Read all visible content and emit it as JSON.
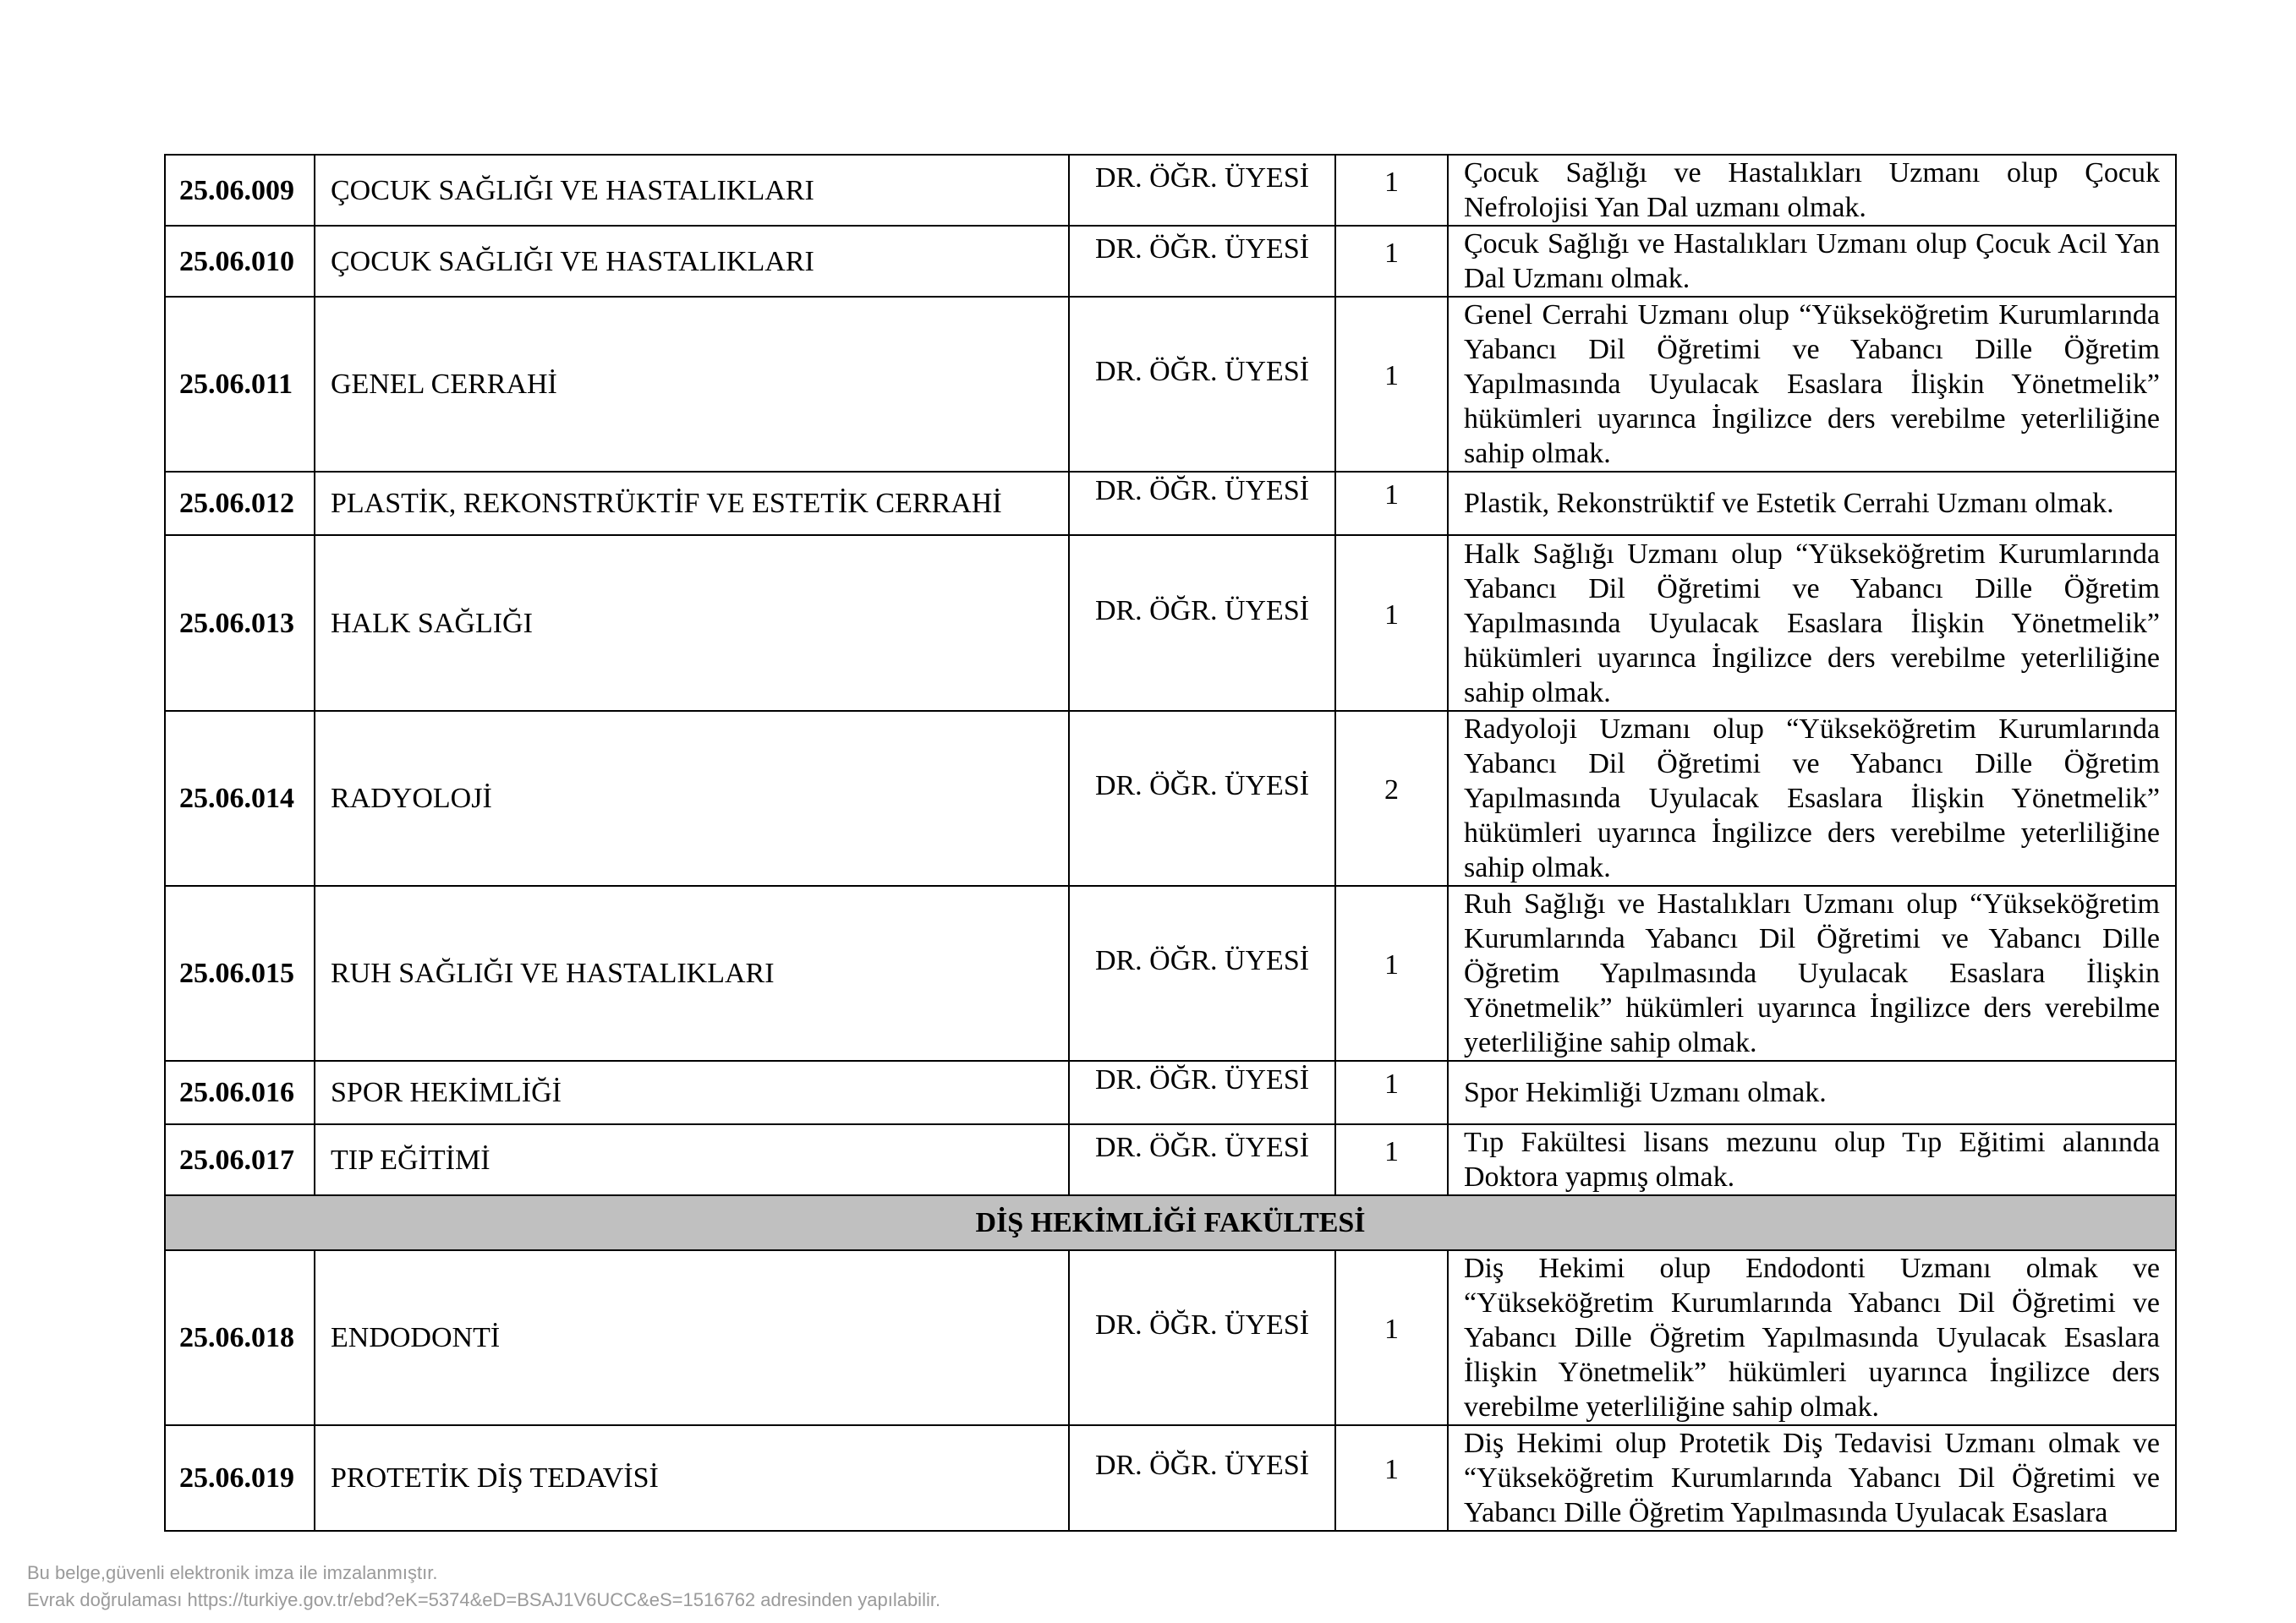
{
  "rows_top": [
    {
      "code": "25.06.009",
      "department": "ÇOCUK SAĞLIĞI VE HASTALIKLARI",
      "title": "DR. ÖĞR. ÜYESİ",
      "count": "1",
      "requirement": "Çocuk Sağlığı ve Hastalıkları Uzmanı olup Çocuk Nefrolojisi Yan Dal uzmanı olmak."
    },
    {
      "code": "25.06.010",
      "department": "ÇOCUK SAĞLIĞI VE HASTALIKLARI",
      "title": "DR. ÖĞR. ÜYESİ",
      "count": "1",
      "requirement": "Çocuk Sağlığı ve Hastalıkları Uzmanı olup Çocuk Acil Yan Dal Uzmanı olmak."
    },
    {
      "code": "25.06.011",
      "department": "GENEL CERRAHİ",
      "title": "DR. ÖĞR. ÜYESİ",
      "count": "1",
      "requirement": "Genel Cerrahi Uzmanı olup “Yükseköğretim Kurumlarında Yabancı Dil Öğretimi ve Yabancı Dille Öğretim Yapılmasında Uyulacak Esaslara İlişkin Yönetmelik” hükümleri uyarınca İngilizce ders verebilme yeterliliğine sahip olmak."
    },
    {
      "code": "25.06.012",
      "department": "PLASTİK, REKONSTRÜKTİF VE ESTETİK CERRAHİ",
      "title": "DR. ÖĞR. ÜYESİ",
      "count": "1",
      "requirement": "Plastik, Rekonstrüktif ve Estetik Cerrahi Uzmanı olmak."
    },
    {
      "code": "25.06.013",
      "department": "HALK SAĞLIĞI",
      "title": "DR. ÖĞR. ÜYESİ",
      "count": "1",
      "requirement": "Halk Sağlığı Uzmanı olup “Yükseköğretim Kurumlarında Yabancı Dil Öğretimi ve Yabancı Dille Öğretim Yapılmasında Uyulacak Esaslara İlişkin Yönetmelik” hükümleri uyarınca İngilizce ders verebilme yeterliliğine sahip olmak."
    },
    {
      "code": "25.06.014",
      "department": "RADYOLOJİ",
      "title": "DR. ÖĞR. ÜYESİ",
      "count": "2",
      "requirement": "Radyoloji Uzmanı olup “Yükseköğretim Kurumlarında Yabancı Dil Öğretimi ve Yabancı Dille Öğretim Yapılmasında Uyulacak Esaslara İlişkin Yönetmelik” hükümleri uyarınca İngilizce ders verebilme yeterliliğine sahip olmak."
    },
    {
      "code": "25.06.015",
      "department": "RUH SAĞLIĞI VE HASTALIKLARI",
      "title": "DR. ÖĞR. ÜYESİ",
      "count": "1",
      "requirement": "Ruh Sağlığı ve Hastalıkları Uzmanı olup “Yükseköğretim Kurumlarında Yabancı Dil Öğretimi ve Yabancı Dille Öğretim Yapılmasında Uyulacak Esaslara İlişkin Yönetmelik” hükümleri uyarınca İngilizce ders verebilme yeterliliğine sahip olmak."
    },
    {
      "code": "25.06.016",
      "department": "SPOR HEKİMLİĞİ",
      "title": "DR. ÖĞR. ÜYESİ",
      "count": "1",
      "requirement": "Spor Hekimliği Uzmanı olmak."
    },
    {
      "code": "25.06.017",
      "department": "TIP EĞİTİMİ",
      "title": "DR. ÖĞR. ÜYESİ",
      "count": "1",
      "requirement": "Tıp Fakültesi lisans mezunu olup Tıp Eğitimi alanında Doktora yapmış olmak."
    }
  ],
  "section_title": "DİŞ HEKİMLİĞİ FAKÜLTESİ",
  "rows_bottom": [
    {
      "code": "25.06.018",
      "department": "ENDODONTİ",
      "title": "DR. ÖĞR. ÜYESİ",
      "count": "1",
      "requirement": "Diş Hekimi olup Endodonti Uzmanı olmak ve “Yükseköğretim Kurumlarında Yabancı Dil Öğretimi ve Yabancı Dille Öğretim Yapılmasında Uyulacak Esaslara İlişkin Yönetmelik” hükümleri uyarınca İngilizce ders verebilme yeterliliğine sahip olmak."
    },
    {
      "code": "25.06.019",
      "department": "PROTETİK DİŞ TEDAVİSİ",
      "title": "DR. ÖĞR. ÜYESİ",
      "count": "1",
      "requirement": "Diş Hekimi olup Protetik Diş Tedavisi Uzmanı olmak ve “Yükseköğretim Kurumlarında Yabancı Dil Öğretimi ve Yabancı Dille Öğretim Yapılmasında Uyulacak Esaslara"
    }
  ],
  "footer": {
    "line1": "Bu belge,güvenli elektronik imza ile imzalanmıştır.",
    "line2": "Evrak doğrulaması https://turkiye.gov.tr/ebd?eK=5374&eD=BSAJ1V6UCC&eS=1516762 adresinden yapılabilir."
  }
}
